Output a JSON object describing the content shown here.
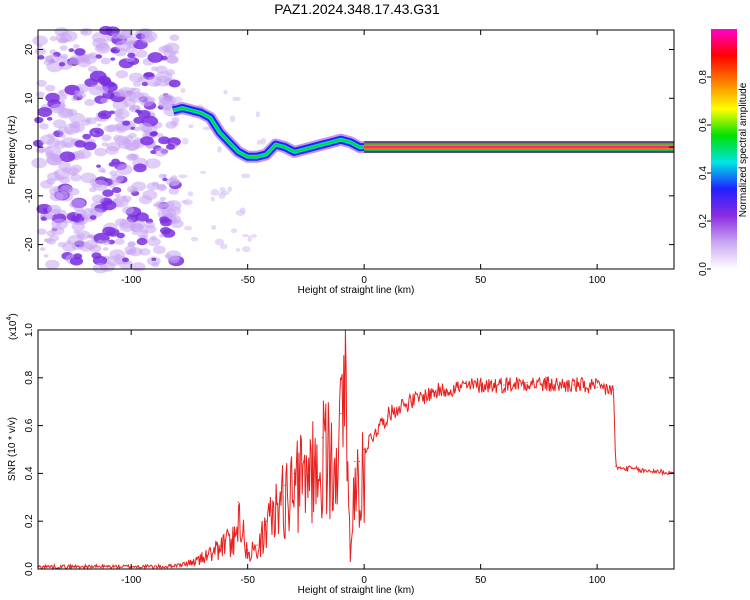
{
  "title": "PAZ1.2024.348.17.43.G31",
  "colors": {
    "snr_line": "#e8201e",
    "spectrogram_low": "#9b59e8",
    "spectrogram_high": "#ff2a6d"
  },
  "chart_data": [
    {
      "type": "heatmap",
      "xlabel": "Height of straight line (km)",
      "ylabel": "Frequency (Hz)",
      "xlim": [
        -140,
        133
      ],
      "ylim": [
        -25,
        24
      ],
      "xticks": [
        -100,
        -50,
        0,
        50,
        100
      ],
      "yticks": [
        -20,
        -10,
        0,
        10,
        20
      ],
      "xtick_labels": [
        "-100",
        "-50",
        "0",
        "50",
        "100"
      ],
      "ytick_labels": [
        "-20",
        "-10",
        "0",
        "10",
        "20"
      ],
      "noise_region_x": [
        -140,
        -80
      ],
      "tracked_signal": {
        "x": [
          -82,
          -78,
          -74,
          -70,
          -66,
          -62,
          -58,
          -54,
          -50,
          -46,
          -42,
          -38,
          -34,
          -30,
          -26,
          -22,
          -18,
          -14,
          -10,
          -6,
          -2,
          0,
          10,
          20,
          40,
          60,
          80,
          100,
          133
        ],
        "frequency": [
          7.5,
          8,
          7.5,
          7,
          6,
          3,
          1,
          -1,
          -2,
          -2,
          -1.5,
          0.5,
          0,
          -1,
          -0.5,
          0,
          0.5,
          1,
          1.5,
          1,
          0,
          0,
          0,
          0,
          0,
          0,
          0,
          0,
          0
        ]
      },
      "colorbar": {
        "label": "Normalized spectral amplitude",
        "range": [
          0,
          1
        ],
        "ticks": [
          0.0,
          0.2,
          0.4,
          0.6,
          0.8
        ],
        "tick_labels": [
          "0.0",
          "0.2",
          "0.4",
          "0.6",
          "0.8"
        ],
        "colormap": [
          "#ffffff",
          "#c9a6f2",
          "#8b2be2",
          "#2020ff",
          "#00e5e5",
          "#00e000",
          "#ffff00",
          "#ff8000",
          "#ff0000",
          "#ff00cc"
        ]
      }
    },
    {
      "type": "line",
      "xlabel": "Height of straight line (km)",
      "ylabel": "SNR (10 * v/v)",
      "y_multiplier_label": "(x10",
      "y_multiplier_exponent": "4",
      "y_multiplier_close": ")",
      "xlim": [
        -140,
        133
      ],
      "ylim": [
        0,
        1.0
      ],
      "xticks": [
        -100,
        -50,
        0,
        50,
        100
      ],
      "yticks": [
        0.0,
        0.2,
        0.4,
        0.6,
        0.8,
        1.0
      ],
      "xtick_labels": [
        "-100",
        "-50",
        "0",
        "50",
        "100"
      ],
      "ytick_labels": [
        "0.0",
        "0.2",
        "0.4",
        "0.6",
        "0.8",
        "1.0"
      ],
      "series": [
        {
          "x": [
            -140,
            -120,
            -100,
            -85,
            -78,
            -72,
            -66,
            -60,
            -56,
            -54,
            -52,
            -50,
            -46,
            -42,
            -38,
            -34,
            -30,
            -26,
            -22,
            -18,
            -14,
            -10,
            -8,
            -6,
            -4,
            -2,
            0,
            5,
            10,
            15,
            20,
            25,
            30,
            40,
            50,
            60,
            70,
            80,
            90,
            100,
            107,
            108,
            110,
            115,
            120,
            125,
            133
          ],
          "y": [
            0.01,
            0.01,
            0.01,
            0.01,
            0.02,
            0.04,
            0.08,
            0.12,
            0.15,
            0.28,
            0.18,
            0.08,
            0.1,
            0.2,
            0.3,
            0.35,
            0.4,
            0.45,
            0.5,
            0.55,
            0.6,
            0.65,
            1.0,
            0.05,
            0.45,
            0.45,
            0.5,
            0.58,
            0.64,
            0.68,
            0.7,
            0.72,
            0.74,
            0.76,
            0.77,
            0.77,
            0.78,
            0.77,
            0.77,
            0.76,
            0.75,
            0.43,
            0.42,
            0.42,
            0.41,
            0.41,
            0.4
          ]
        }
      ]
    }
  ]
}
